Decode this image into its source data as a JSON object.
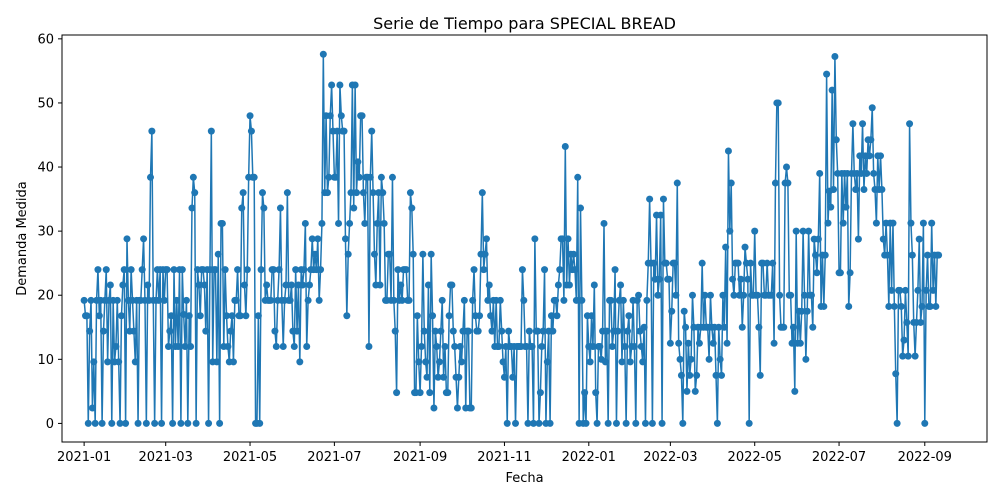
{
  "chart_data": {
    "type": "line",
    "title": "Serie de Tiempo para SPECIAL BREAD",
    "xlabel": "Fecha",
    "ylabel": "Demanda Medida",
    "grid": false,
    "legend": "none",
    "color": "#1f77b4",
    "marker": "circle",
    "x_tick_labels": [
      "2021-01",
      "2021-03",
      "2021-05",
      "2021-07",
      "2021-09",
      "2021-11",
      "2022-01",
      "2022-03",
      "2022-05",
      "2022-07",
      "2022-09"
    ],
    "x_tick_dates": [
      "2021-01-01",
      "2021-03-01",
      "2021-05-01",
      "2021-07-01",
      "2021-09-01",
      "2021-11-01",
      "2022-01-01",
      "2022-03-01",
      "2022-05-01",
      "2022-07-01",
      "2022-09-01"
    ],
    "y_ticks": [
      0,
      10,
      20,
      30,
      40,
      50,
      60
    ],
    "xlim": [
      "2020-12-16",
      "2022-10-16"
    ],
    "ylim": [
      -2.9,
      60.6
    ],
    "series": [
      {
        "start_date": "2021-01-01",
        "values": [
          19.2,
          16.8,
          16.8,
          0,
          14.4,
          19.2,
          2.4,
          9.6,
          0,
          19.2,
          24,
          16.8,
          19.2,
          0,
          14.4,
          19.2,
          24,
          9.6,
          19.2,
          21.6,
          0,
          19.2,
          9.6,
          12,
          19.2,
          9.6,
          0,
          16.8,
          21.6,
          24,
          0,
          28.8,
          19.2,
          14.4,
          24,
          19.2,
          14.4,
          9.6,
          19.2,
          0,
          19.2,
          19.2,
          24,
          28.8,
          19.2,
          0,
          21.6,
          19.2,
          38.4,
          45.6,
          19.2,
          0,
          19.2,
          24,
          19.2,
          24,
          0,
          24,
          19.2,
          24,
          24,
          12,
          14.4,
          16.8,
          0,
          24,
          12,
          19.2,
          12,
          24,
          0,
          24,
          17,
          12,
          19.2,
          0,
          16.8,
          12,
          33.6,
          38.4,
          36,
          0,
          24,
          21.6,
          16.8,
          24,
          24,
          21.6,
          14.4,
          24,
          0,
          24,
          45.6,
          9.6,
          24,
          24,
          9.6,
          26.4,
          0,
          31.2,
          31.2,
          12,
          24,
          16.8,
          12,
          9.6,
          14.4,
          16.8,
          9.6,
          19.2,
          19.2,
          24,
          16.8,
          16.8,
          33.6,
          36,
          21.6,
          16.8,
          24,
          38.4,
          48,
          45.6,
          38.4,
          38.4,
          0,
          0,
          16.8,
          0,
          24,
          36,
          33.6,
          19.2,
          21.6,
          19.2,
          19.2,
          19.2,
          24,
          24,
          14.4,
          12,
          19.2,
          24,
          33.6,
          19.2,
          12,
          19.2,
          21.6,
          36,
          19.2,
          19.2,
          21.6,
          14.4,
          12,
          24,
          14.4,
          21.6,
          9.6,
          24,
          21.6,
          24,
          31.2,
          12,
          19.2,
          21.6,
          24,
          28.8,
          24,
          26.4,
          24,
          28.8,
          19.2,
          24,
          31.2,
          57.6,
          36,
          48,
          36,
          38.4,
          48,
          52.8,
          45.6,
          38.4,
          38.4,
          45.6,
          31.2,
          52.8,
          48,
          45.6,
          45.6,
          28.8,
          16.8,
          26.4,
          31.2,
          36,
          52.8,
          33.6,
          52.8,
          36,
          40.8,
          38.4,
          48,
          48,
          36,
          31.2,
          38.4,
          38.4,
          12,
          38.4,
          45.6,
          36,
          26.4,
          21.6,
          31.2,
          36,
          21.6,
          38.4,
          36,
          31.2,
          19.2,
          19.2,
          26.4,
          26.4,
          19.2,
          38.4,
          19.2,
          14.4,
          4.8,
          24,
          19.2,
          21.6,
          19.2,
          24,
          24,
          24,
          19.2,
          19.2,
          36,
          33.6,
          26.4,
          4.8,
          4.8,
          16.8,
          9.6,
          4.8,
          12,
          26.4,
          14.4,
          9.6,
          7.2,
          21.6,
          4.8,
          26.4,
          16.8,
          2.4,
          14.4,
          12,
          7.2,
          9.6,
          14.4,
          19.2,
          7.2,
          12,
          4.8,
          4.8,
          16.8,
          21.6,
          21.6,
          14.4,
          12,
          7.2,
          2.4,
          7.2,
          12,
          9.6,
          14.4,
          19.2,
          2.4,
          14.4,
          14.4,
          2.4,
          2.4,
          19.2,
          24,
          16.8,
          14.4,
          14.4,
          16.8,
          26.4,
          36,
          24,
          26.4,
          28.8,
          19.2,
          21.6,
          16.8,
          14.4,
          19.2,
          12,
          19.2,
          12,
          12,
          19.2,
          14.4,
          9.6,
          7.2,
          12,
          0,
          14.4,
          12,
          12,
          7.2,
          12,
          0,
          12,
          12,
          12,
          12,
          24,
          19.2,
          12,
          12,
          0,
          14.4,
          12,
          12,
          0,
          28.8,
          14.4,
          14.4,
          0,
          4.8,
          12,
          14.4,
          24,
          0,
          9.6,
          14.4,
          0,
          16.8,
          14.4,
          19.2,
          19.2,
          16.8,
          21.6,
          24,
          28.8,
          28.8,
          19.2,
          43.2,
          21.6,
          28.8,
          21.6,
          26.4,
          24,
          26.4,
          24,
          19.2,
          38.4,
          0,
          33.6,
          19.2,
          0,
          4.8,
          0,
          16.8,
          12,
          9.6,
          16.8,
          12,
          21.6,
          4.8,
          0,
          12,
          12,
          10,
          14.4,
          31.2,
          9.6,
          14.4,
          0,
          19.2,
          19.2,
          12,
          14.4,
          24,
          0,
          14.4,
          19.2,
          21.6,
          9.6,
          19.2,
          12,
          0,
          14.4,
          16.8,
          9.6,
          12,
          19.2,
          12,
          0,
          19.2,
          20,
          14.4,
          12,
          9.6,
          15,
          0,
          19.2,
          25,
          35,
          25,
          0,
          25,
          22.5,
          32.5,
          20,
          22.5,
          32.5,
          0,
          35,
          25,
          25,
          22.5,
          22.5,
          12.5,
          17.5,
          25,
          25,
          20,
          37.5,
          12.5,
          10,
          7.5,
          0,
          17.5,
          15,
          5,
          12.5,
          7.5,
          10,
          20,
          15,
          5,
          7.5,
          15,
          12.5,
          15,
          25,
          15,
          20,
          15,
          15,
          10,
          20,
          15,
          12.5,
          15,
          7.5,
          0,
          15,
          10,
          7.5,
          20,
          15,
          27.5,
          12.5,
          42.5,
          30,
          37.5,
          22.5,
          20,
          25,
          25,
          25,
          20,
          22.5,
          15,
          20,
          27.5,
          25,
          22.5,
          0,
          25,
          20,
          20,
          30,
          20,
          20,
          15,
          7.5,
          25,
          25,
          20,
          20,
          25,
          20,
          20,
          20,
          25,
          12.5,
          37.5,
          50,
          50,
          20,
          15,
          15,
          15,
          37.5,
          40,
          37.5,
          20,
          20,
          12.5,
          15,
          5,
          30,
          12.5,
          17.5,
          12.5,
          17.5,
          30,
          20,
          10,
          17.5,
          30,
          20,
          20,
          15,
          28.75,
          26.25,
          23.5,
          28.75,
          39,
          18.25,
          26.25,
          18.25,
          26.25,
          54.5,
          31.25,
          36.25,
          33.75,
          52,
          36.5,
          57.25,
          44.25,
          39,
          23.5,
          23.5,
          39,
          31.25,
          39,
          33.75,
          39,
          18.25,
          23.5,
          39,
          46.75,
          39,
          36.5,
          39,
          28.75,
          41.75,
          39,
          46.75,
          36.5,
          41.75,
          39,
          44.25,
          41.75,
          44.25,
          49.25,
          39,
          36.5,
          31.25,
          41.75,
          36.5,
          41.75,
          36.5,
          28.75,
          26.25,
          31.25,
          26.25,
          18.25,
          31.25,
          20.75,
          31.25,
          18.25,
          7.75,
          0,
          20.75,
          20.75,
          18.25,
          10.5,
          13,
          20.75,
          15.75,
          10.5,
          46.75,
          31.25,
          26.25,
          15.75,
          10.5,
          15.75,
          20.75,
          28.75,
          15.75,
          18.25,
          31.25,
          0,
          20.75,
          26.25,
          18.25,
          18.25,
          31.25,
          20.75,
          26.25,
          18.25,
          26.25,
          26.25
        ]
      }
    ]
  }
}
